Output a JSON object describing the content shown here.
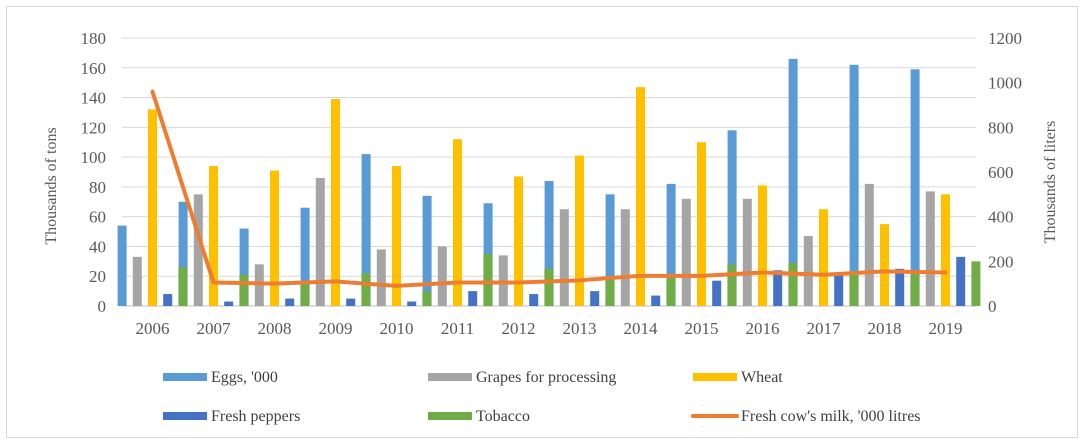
{
  "chart_data": {
    "type": "bar",
    "title": "",
    "categories": [
      "2006",
      "2007",
      "2008",
      "2009",
      "2010",
      "2011",
      "2012",
      "2013",
      "2014",
      "2015",
      "2016",
      "2017",
      "2018",
      "2019"
    ],
    "ylabel": "Thousands of tons",
    "y2label": "Thousands of liters",
    "ylim": [
      0,
      180
    ],
    "yticks": [
      0,
      20,
      40,
      60,
      80,
      100,
      120,
      140,
      160,
      180
    ],
    "y2lim": [
      0,
      1200
    ],
    "y2ticks": [
      0,
      200,
      400,
      600,
      800,
      1000,
      1200
    ],
    "grid": true,
    "legend_position": "bottom",
    "series": [
      {
        "name": "Eggs, '000",
        "axis": "left",
        "type": "bar",
        "color": "#5b9bd5",
        "values": [
          54,
          70,
          52,
          66,
          102,
          74,
          69,
          84,
          75,
          82,
          118,
          166,
          162,
          159
        ]
      },
      {
        "name": "Grapes for processing",
        "axis": "left",
        "type": "bar",
        "color": "#a5a5a5",
        "values": [
          33,
          75,
          28,
          86,
          38,
          40,
          34,
          65,
          65,
          72,
          72,
          47,
          82,
          77
        ]
      },
      {
        "name": "Wheat",
        "axis": "left",
        "type": "bar",
        "color": "#ffc000",
        "values": [
          132,
          94,
          91,
          139,
          94,
          112,
          87,
          101,
          147,
          110,
          81,
          65,
          55,
          75
        ]
      },
      {
        "name": "Fresh peppers",
        "axis": "left",
        "type": "bar",
        "color": "#4472c4",
        "values": [
          8,
          3,
          5,
          5,
          3,
          10,
          8,
          10,
          7,
          17,
          24,
          22,
          25,
          33
        ]
      },
      {
        "name": "Tobacco",
        "axis": "left",
        "type": "bar",
        "color": "#70ad47",
        "values": [
          26,
          21,
          16,
          22,
          10,
          35,
          25,
          19,
          19,
          28,
          29,
          22,
          24,
          30
        ]
      },
      {
        "name": "Fresh cow's milk, '000 litres",
        "axis": "right",
        "type": "line",
        "color": "#ed7d31",
        "values": [
          960,
          105,
          100,
          110,
          90,
          105,
          105,
          115,
          135,
          135,
          150,
          140,
          155,
          150
        ]
      }
    ],
    "legend": [
      {
        "label": "Eggs, '000",
        "kind": "bar",
        "color": "#5b9bd5"
      },
      {
        "label": "Grapes for processing",
        "kind": "bar",
        "color": "#a5a5a5"
      },
      {
        "label": "Wheat",
        "kind": "bar",
        "color": "#ffc000"
      },
      {
        "label": "Fresh peppers",
        "kind": "bar",
        "color": "#4472c4"
      },
      {
        "label": "Tobacco",
        "kind": "bar",
        "color": "#70ad47"
      },
      {
        "label": "Fresh cow's milk, '000 litres",
        "kind": "line",
        "color": "#ed7d31"
      }
    ]
  }
}
